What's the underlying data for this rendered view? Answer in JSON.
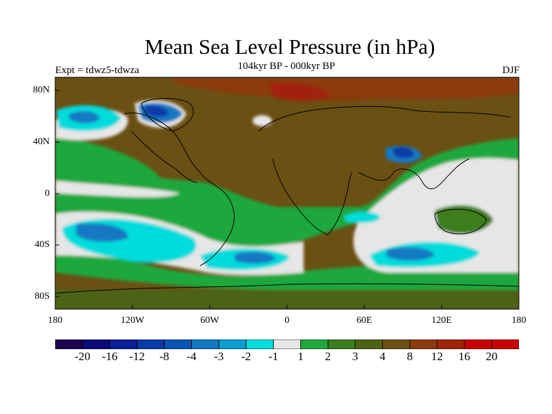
{
  "title": "Mean Sea Level Pressure (in hPa)",
  "subtitle": "104kyr BP - 000kyr BP",
  "experiment": "Expt = tdwz5-tdwza",
  "season": "DJF",
  "lat_labels": [
    "80N",
    "40N",
    "0",
    "40S",
    "80S"
  ],
  "lon_labels": [
    "180",
    "120W",
    "60W",
    "0",
    "60E",
    "120E",
    "180"
  ],
  "colorbar": {
    "labels": [
      "-20",
      "-16",
      "-12",
      "-8",
      "-4",
      "-3",
      "-2",
      "-1",
      "1",
      "2",
      "3",
      "4",
      "8",
      "12",
      "16",
      "20"
    ],
    "colors": [
      "#1a0550",
      "#0a0a78",
      "#0a1f96",
      "#0a3aa8",
      "#0a55b4",
      "#1278c2",
      "#0a9ed0",
      "#00dcdc",
      "#e6e6e6",
      "#1ea83c",
      "#3c7d1e",
      "#4b6414",
      "#6b5014",
      "#8b3a10",
      "#a0230a",
      "#c80000"
    ]
  }
}
